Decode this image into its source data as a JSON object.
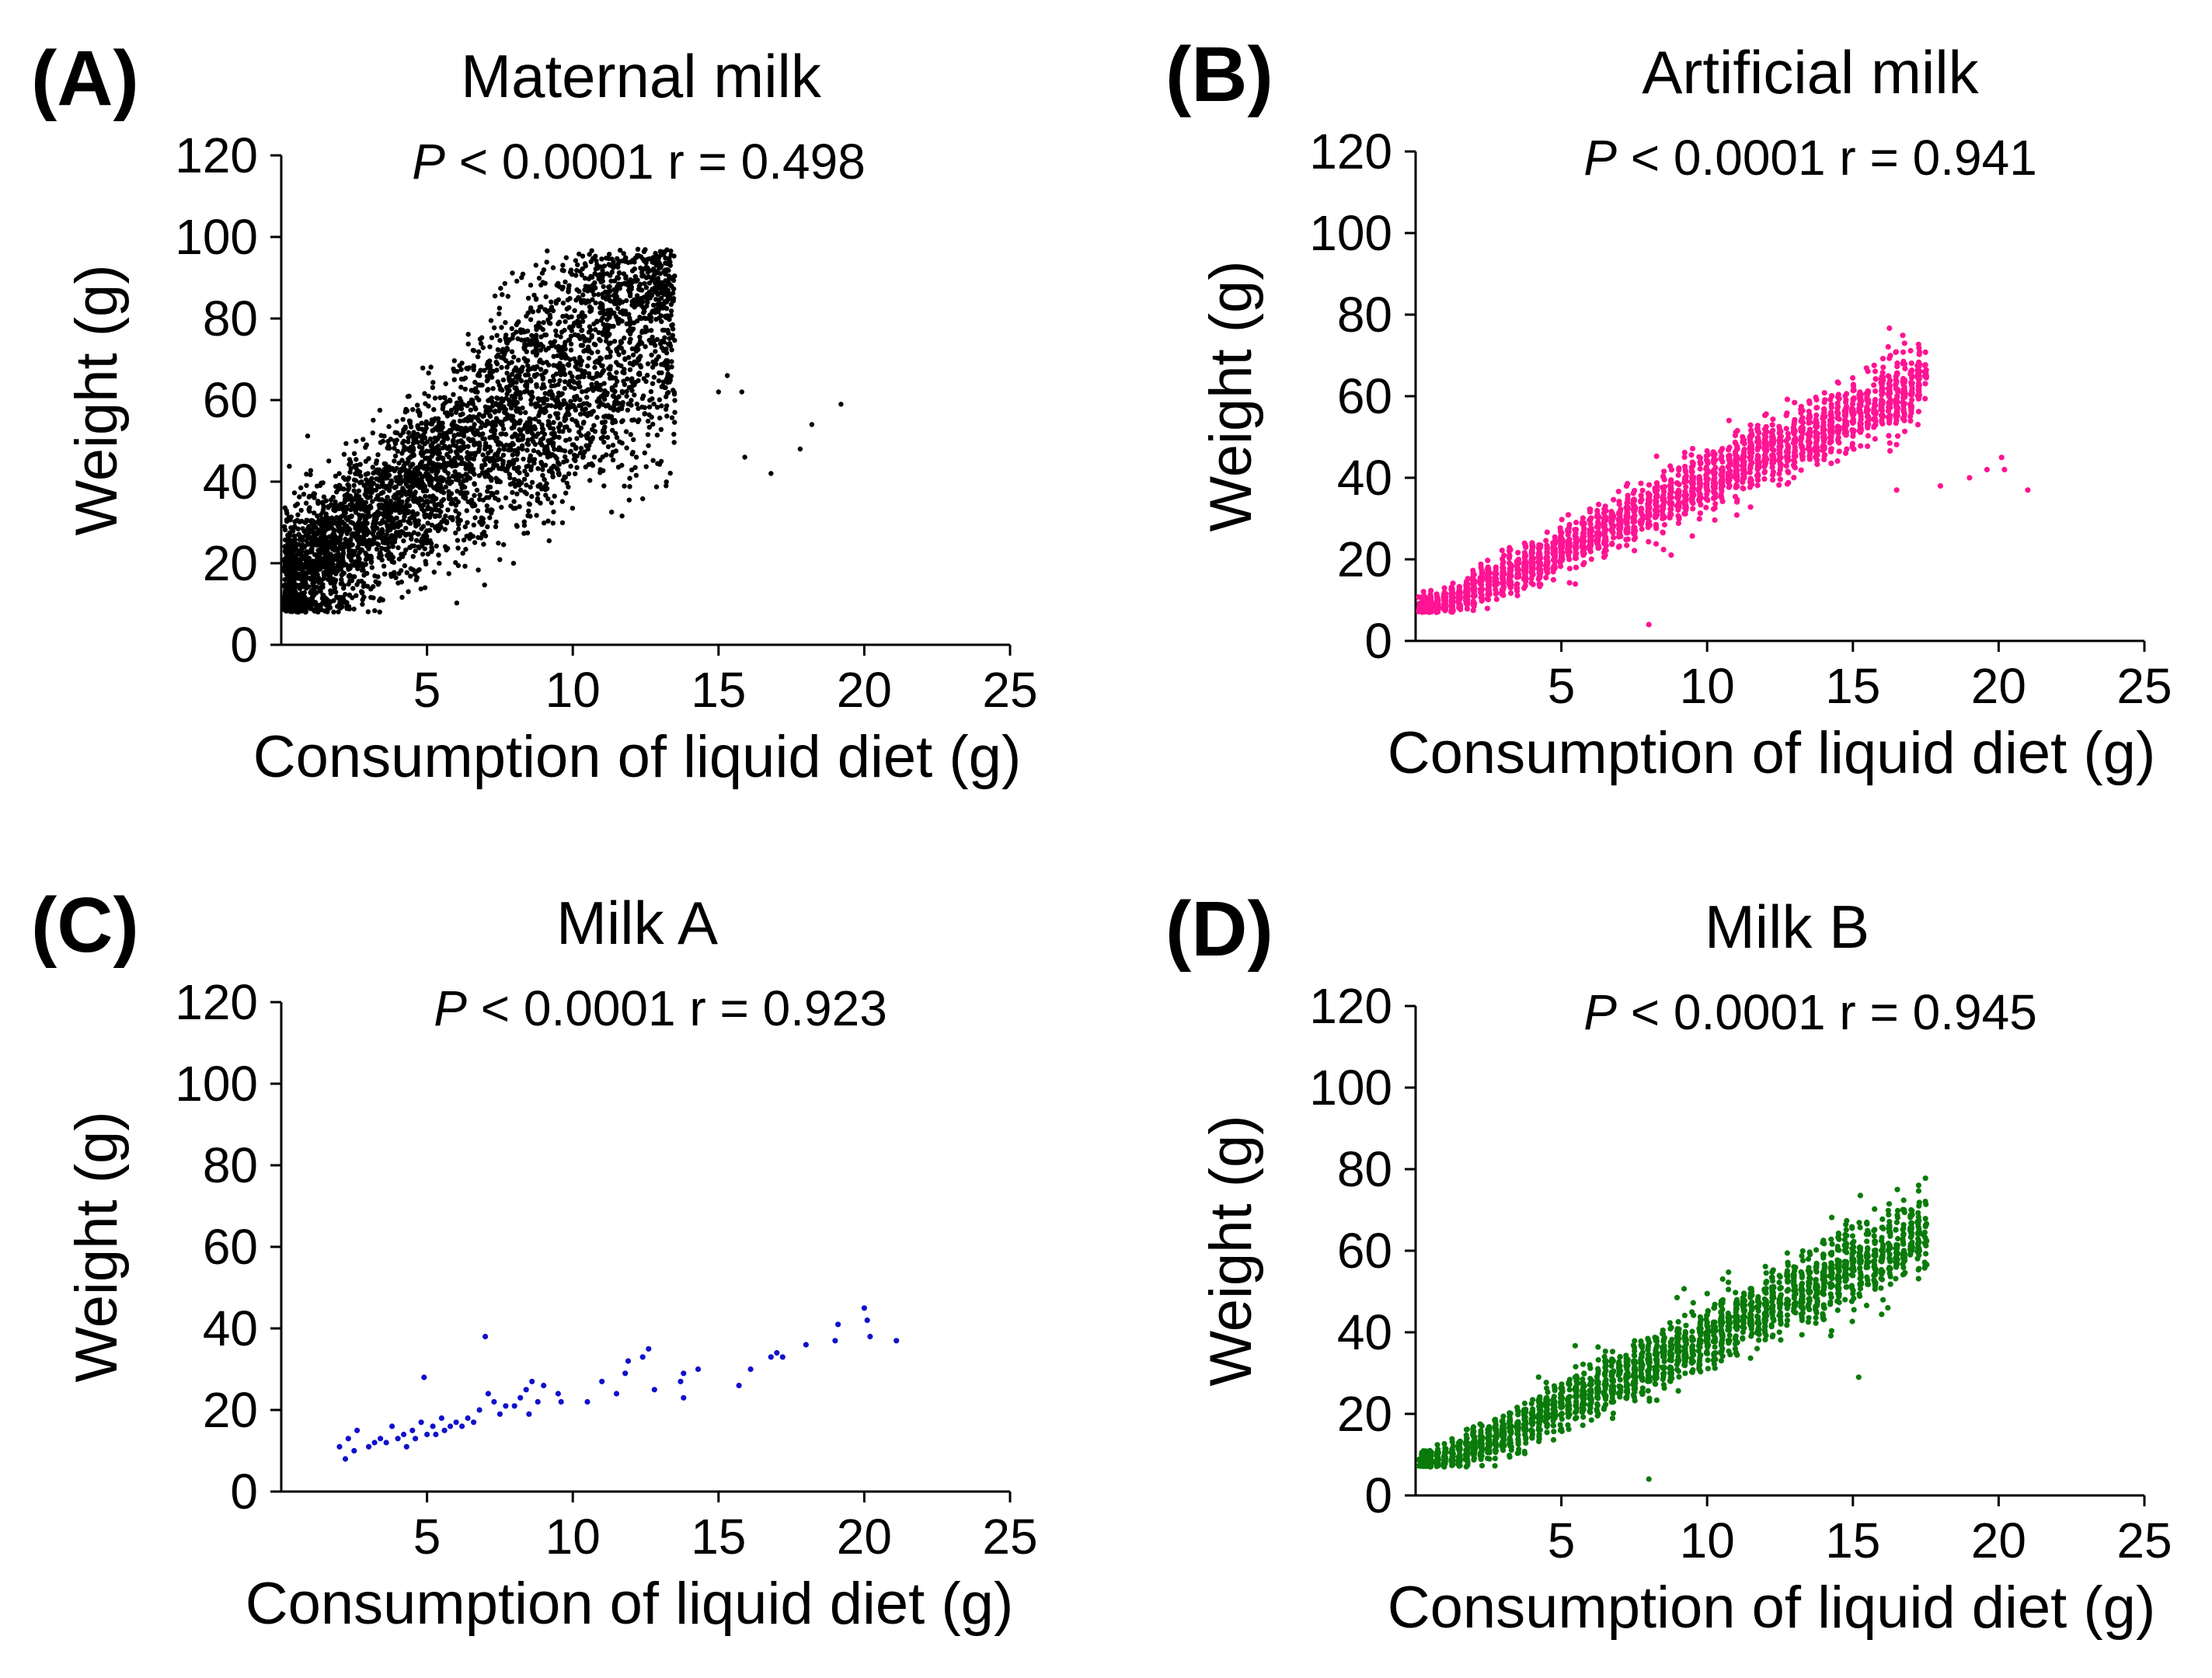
{
  "chart_data": [
    {
      "type": "scatter",
      "panel_label": "(A)",
      "title": "Maternal milk",
      "stats": {
        "p_symbol": "P",
        "p_text": " < 0.0001 r = 0.498"
      },
      "xlabel": "Consumption of liquid diet (g)",
      "ylabel": "Weight (g)",
      "xlim": [
        0,
        25
      ],
      "ylim": [
        0,
        120
      ],
      "xticks": [
        "5",
        "10",
        "15",
        "20",
        "25"
      ],
      "yticks": [
        "0",
        "20",
        "40",
        "60",
        "80",
        "100",
        "120"
      ],
      "color": "#000000",
      "grid": false,
      "legend": "none",
      "points_summary": "dense cloud approx. 5000 points",
      "generator": {
        "n": 4200,
        "slope": 5.4,
        "intercept": 14,
        "noise": 14,
        "xmax": 13.5,
        "ymin": 8
      },
      "outliers": [
        [
          15.0,
          62
        ],
        [
          15.3,
          66
        ],
        [
          15.8,
          62
        ],
        [
          15.9,
          46
        ],
        [
          16.8,
          42
        ],
        [
          17.8,
          48
        ],
        [
          18.2,
          54
        ],
        [
          19.2,
          59
        ],
        [
          13.2,
          39
        ],
        [
          13.5,
          57
        ],
        [
          12.5,
          80
        ],
        [
          11.8,
          94
        ]
      ]
    },
    {
      "type": "scatter",
      "panel_label": "(B)",
      "title": "Artificial milk",
      "stats": {
        "p_symbol": "P",
        "p_text": " < 0.0001 r = 0.941"
      },
      "xlabel": "Consumption of liquid diet (g)",
      "ylabel": "Weight (g)",
      "xlim": [
        0,
        25
      ],
      "ylim": [
        0,
        120
      ],
      "xticks": [
        "5",
        "10",
        "15",
        "20",
        "25"
      ],
      "yticks": [
        "0",
        "20",
        "40",
        "60",
        "80",
        "100",
        "120"
      ],
      "color": "#ff1493",
      "grid": false,
      "legend": "none",
      "generator": {
        "n": 2600,
        "slope": 3.3,
        "intercept": 6,
        "noise": 5,
        "xmax": 17.5,
        "ymin": 7
      },
      "outliers": [
        [
          8.0,
          4
        ],
        [
          18.0,
          38
        ],
        [
          19.0,
          40
        ],
        [
          19.6,
          42
        ],
        [
          20.1,
          45
        ],
        [
          20.2,
          42
        ],
        [
          21.0,
          37
        ],
        [
          16.5,
          37
        ]
      ]
    },
    {
      "type": "scatter",
      "panel_label": "(C)",
      "title": "Milk A",
      "stats": {
        "p_symbol": "P",
        "p_text": " < 0.0001 r = 0.923"
      },
      "xlabel": "Consumption of liquid diet (g)",
      "ylabel": "Weight (g)",
      "xlim": [
        0,
        25
      ],
      "ylim": [
        0,
        120
      ],
      "xticks": [
        "5",
        "10",
        "15",
        "20",
        "25"
      ],
      "yticks": [
        "0",
        "20",
        "40",
        "60",
        "80",
        "100",
        "120"
      ],
      "color": "#1010cc",
      "grid": false,
      "legend": "none",
      "points": [
        [
          2.0,
          11
        ],
        [
          2.2,
          8
        ],
        [
          2.3,
          13
        ],
        [
          2.5,
          10
        ],
        [
          2.6,
          15
        ],
        [
          3.0,
          11
        ],
        [
          3.2,
          12
        ],
        [
          3.4,
          13
        ],
        [
          3.6,
          12
        ],
        [
          3.8,
          16
        ],
        [
          4.0,
          13
        ],
        [
          4.2,
          14
        ],
        [
          4.3,
          11
        ],
        [
          4.5,
          15
        ],
        [
          4.6,
          13
        ],
        [
          4.8,
          17
        ],
        [
          4.9,
          28
        ],
        [
          5.0,
          14
        ],
        [
          5.2,
          16
        ],
        [
          5.3,
          14
        ],
        [
          5.5,
          18
        ],
        [
          5.6,
          15
        ],
        [
          5.8,
          16
        ],
        [
          6.0,
          17
        ],
        [
          6.2,
          16
        ],
        [
          6.4,
          18
        ],
        [
          6.6,
          17
        ],
        [
          6.8,
          20
        ],
        [
          7.0,
          38
        ],
        [
          7.1,
          24
        ],
        [
          7.3,
          22
        ],
        [
          7.5,
          19
        ],
        [
          7.7,
          21
        ],
        [
          8.0,
          21
        ],
        [
          8.2,
          23
        ],
        [
          8.4,
          25
        ],
        [
          8.5,
          19
        ],
        [
          8.6,
          27
        ],
        [
          8.8,
          22
        ],
        [
          9.0,
          26
        ],
        [
          9.5,
          24
        ],
        [
          9.6,
          22
        ],
        [
          10.5,
          22
        ],
        [
          11.0,
          27
        ],
        [
          11.5,
          24
        ],
        [
          11.8,
          29
        ],
        [
          11.9,
          32
        ],
        [
          12.4,
          33
        ],
        [
          12.6,
          35
        ],
        [
          12.8,
          25
        ],
        [
          13.7,
          27
        ],
        [
          13.8,
          23
        ],
        [
          13.8,
          29
        ],
        [
          14.3,
          30
        ],
        [
          15.7,
          26
        ],
        [
          16.1,
          30
        ],
        [
          16.8,
          33
        ],
        [
          17.0,
          34
        ],
        [
          17.2,
          33
        ],
        [
          18.0,
          36
        ],
        [
          19.0,
          37
        ],
        [
          19.1,
          41
        ],
        [
          20.0,
          45
        ],
        [
          20.1,
          42
        ],
        [
          20.2,
          38
        ],
        [
          21.1,
          37
        ]
      ]
    },
    {
      "type": "scatter",
      "panel_label": "(D)",
      "title": "Milk B",
      "stats": {
        "p_symbol": "P",
        "p_text": " < 0.0001 r = 0.945"
      },
      "xlabel": "Consumption of liquid diet (g)",
      "ylabel": "Weight (g)",
      "xlim": [
        0,
        25
      ],
      "ylim": [
        0,
        120
      ],
      "xticks": [
        "5",
        "10",
        "15",
        "20",
        "25"
      ],
      "yticks": [
        "0",
        "20",
        "40",
        "60",
        "80",
        "100",
        "120"
      ],
      "color": "#0a7a0a",
      "grid": false,
      "legend": "none",
      "generator": {
        "n": 2400,
        "slope": 3.4,
        "intercept": 5,
        "noise": 5.5,
        "xmax": 17.5,
        "ymin": 7
      },
      "outliers": [
        [
          8.0,
          4
        ],
        [
          15.2,
          29
        ],
        [
          16.2,
          46
        ],
        [
          17.0,
          70
        ],
        [
          17.4,
          64
        ]
      ]
    }
  ]
}
